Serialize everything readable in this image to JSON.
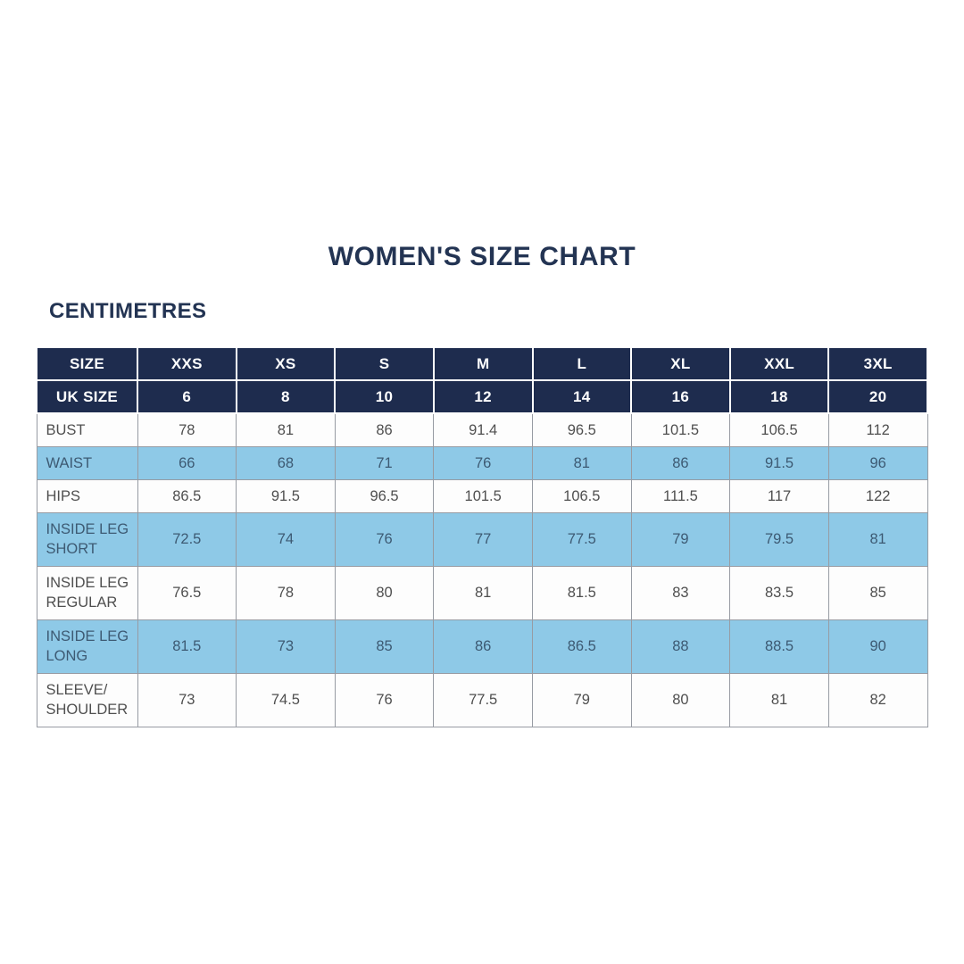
{
  "page": {
    "title": "WOMEN'S SIZE CHART",
    "units_label": "CENTIMETRES"
  },
  "colors": {
    "navy": "#1e2c4e",
    "navy_text": "#233453",
    "header_text": "#ffffff",
    "light_blue": "#8ec9e7",
    "blue_row_text": "#3d5a73",
    "body_text": "#4f4f4f",
    "grid_line": "#979ba3"
  },
  "table": {
    "header_rows": [
      {
        "label": "SIZE",
        "values": [
          "XXS",
          "XS",
          "S",
          "M",
          "L",
          "XL",
          "XXL",
          "3XL"
        ]
      },
      {
        "label": "UK SIZE",
        "values": [
          "6",
          "8",
          "10",
          "12",
          "14",
          "16",
          "18",
          "20"
        ]
      }
    ],
    "rows": [
      {
        "label": "BUST",
        "label_lines": [
          "BUST"
        ],
        "shaded": false,
        "values": [
          "78",
          "81",
          "86",
          "91.4",
          "96.5",
          "101.5",
          "106.5",
          "112"
        ]
      },
      {
        "label": "WAIST",
        "label_lines": [
          "WAIST"
        ],
        "shaded": true,
        "values": [
          "66",
          "68",
          "71",
          "76",
          "81",
          "86",
          "91.5",
          "96"
        ]
      },
      {
        "label": "HIPS",
        "label_lines": [
          "HIPS"
        ],
        "shaded": false,
        "values": [
          "86.5",
          "91.5",
          "96.5",
          "101.5",
          "106.5",
          "111.5",
          "117",
          "122"
        ]
      },
      {
        "label": "INSIDE LEG SHORT",
        "label_lines": [
          "INSIDE LEG",
          "SHORT"
        ],
        "shaded": true,
        "values": [
          "72.5",
          "74",
          "76",
          "77",
          "77.5",
          "79",
          "79.5",
          "81"
        ]
      },
      {
        "label": "INSIDE LEG REGULAR",
        "label_lines": [
          "INSIDE LEG",
          "REGULAR"
        ],
        "shaded": false,
        "values": [
          "76.5",
          "78",
          "80",
          "81",
          "81.5",
          "83",
          "83.5",
          "85"
        ]
      },
      {
        "label": "INSIDE LEG LONG",
        "label_lines": [
          "INSIDE LEG",
          "LONG"
        ],
        "shaded": true,
        "values": [
          "81.5",
          "73",
          "85",
          "86",
          "86.5",
          "88",
          "88.5",
          "90"
        ]
      },
      {
        "label": "SLEEVE/SHOULDER",
        "label_lines": [
          "SLEEVE/",
          "SHOULDER"
        ],
        "shaded": false,
        "values": [
          "73",
          "74.5",
          "76",
          "77.5",
          "79",
          "80",
          "81",
          "82"
        ]
      }
    ]
  }
}
